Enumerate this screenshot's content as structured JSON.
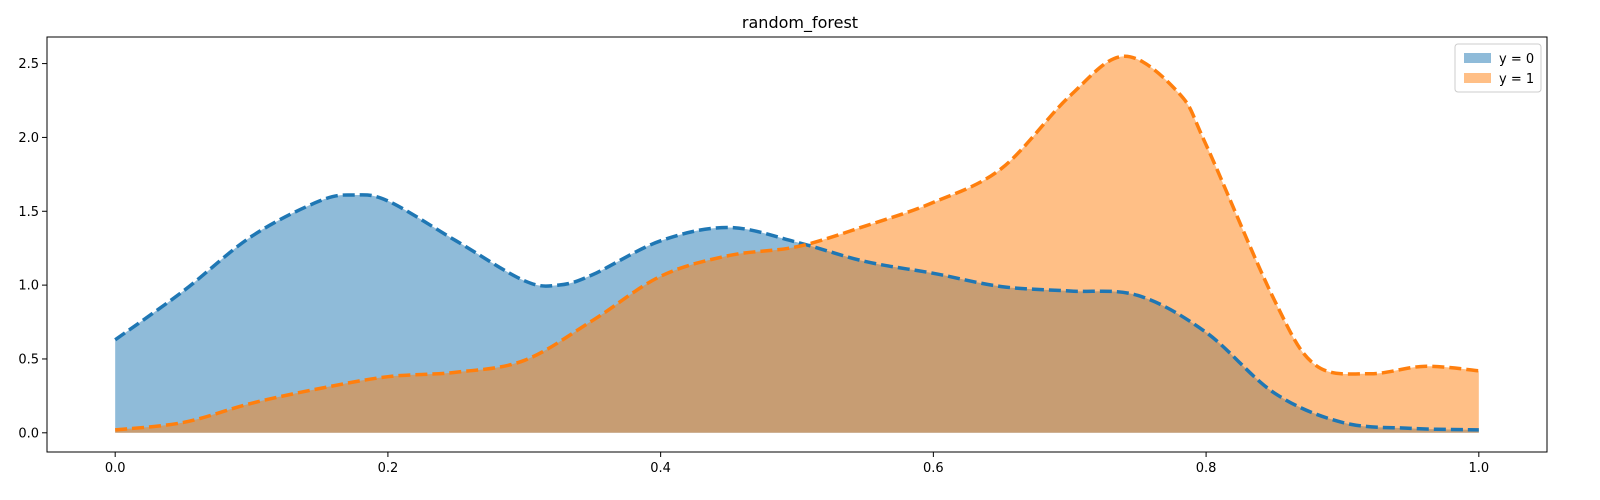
{
  "chart_data": {
    "type": "area",
    "title": "random_forest",
    "xlabel": "",
    "ylabel": "",
    "xlim": [
      -0.05,
      1.05
    ],
    "ylim": [
      -0.13,
      2.68
    ],
    "xticks": [
      0.0,
      0.2,
      0.4,
      0.6,
      0.8,
      1.0
    ],
    "xtick_labels": [
      "0.0",
      "0.2",
      "0.4",
      "0.6",
      "0.8",
      "1.0"
    ],
    "yticks": [
      0.0,
      0.5,
      1.0,
      1.5,
      2.0,
      2.5
    ],
    "ytick_labels": [
      "0.0",
      "0.5",
      "1.0",
      "1.5",
      "2.0",
      "2.5"
    ],
    "grid": false,
    "legend_position": "top-right",
    "series": [
      {
        "name": "y = 0",
        "fill_color": "#1f77b4",
        "line_color": "#1f77b4",
        "x": [
          0.0,
          0.05,
          0.1,
          0.15,
          0.175,
          0.2,
          0.25,
          0.3,
          0.325,
          0.35,
          0.4,
          0.45,
          0.5,
          0.55,
          0.6,
          0.65,
          0.7,
          0.75,
          0.8,
          0.85,
          0.9,
          0.95,
          1.0
        ],
        "y": [
          0.63,
          0.96,
          1.33,
          1.57,
          1.61,
          1.57,
          1.3,
          1.03,
          1.0,
          1.07,
          1.3,
          1.39,
          1.29,
          1.16,
          1.08,
          0.99,
          0.96,
          0.93,
          0.68,
          0.27,
          0.07,
          0.03,
          0.02
        ]
      },
      {
        "name": "y = 1",
        "fill_color": "#ff7f0e",
        "line_color": "#ff7f0e",
        "x": [
          0.0,
          0.05,
          0.1,
          0.15,
          0.2,
          0.25,
          0.3,
          0.35,
          0.4,
          0.45,
          0.5,
          0.55,
          0.6,
          0.65,
          0.7,
          0.74,
          0.78,
          0.8,
          0.85,
          0.88,
          0.92,
          0.96,
          1.0
        ],
        "y": [
          0.02,
          0.07,
          0.2,
          0.3,
          0.38,
          0.41,
          0.49,
          0.76,
          1.06,
          1.2,
          1.26,
          1.4,
          1.56,
          1.79,
          2.28,
          2.55,
          2.3,
          1.95,
          0.9,
          0.46,
          0.4,
          0.45,
          0.42
        ]
      }
    ]
  }
}
